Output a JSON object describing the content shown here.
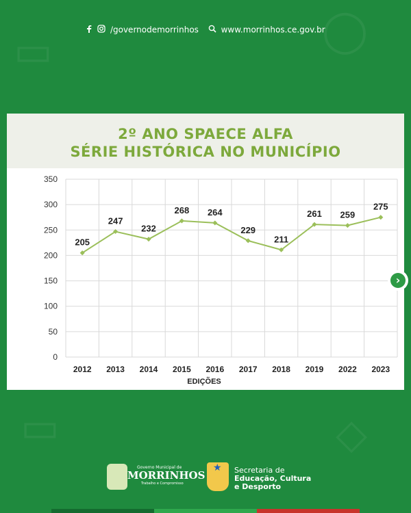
{
  "header": {
    "social_handle": "/governodemorrinhos",
    "website": "www.morrinhos.ce.gov.br"
  },
  "icons": {
    "facebook": "facebook-icon",
    "instagram": "instagram-icon",
    "search": "search-icon",
    "next": "chevron-right-icon"
  },
  "chart_data": {
    "type": "line",
    "title_line1": "2º ANO SPAECE ALFA",
    "title_line2": "SÉRIE HISTÓRICA NO MUNICÍPIO",
    "categories": [
      "2012",
      "2013",
      "2014",
      "2015",
      "2016",
      "2017",
      "2018",
      "2019",
      "2022",
      "2023"
    ],
    "values": [
      205,
      247,
      232,
      268,
      264,
      229,
      211,
      261,
      259,
      275
    ],
    "xlabel": "EDIÇÕES",
    "ylabel": "",
    "ylim": [
      0,
      350
    ],
    "yticks": [
      0,
      50,
      100,
      150,
      200,
      250,
      300,
      350
    ],
    "grid": true,
    "legend": "none",
    "line_color": "#9bbf5a",
    "title_color": "#7da93c"
  },
  "footer": {
    "municipal_small": "Governo Municipal de",
    "municipal_name": "MORRINHOS",
    "municipal_slogan": "Trabalho e Compromisso",
    "secretaria_line1": "Secretaria de",
    "secretaria_line2": "Educação, Cultura",
    "secretaria_line3": "e Desporto"
  },
  "colors": {
    "background": "#1f8a3e",
    "stripe_dark": "#146b2f",
    "stripe_light": "#2fa84d",
    "stripe_red": "#c8342b"
  }
}
